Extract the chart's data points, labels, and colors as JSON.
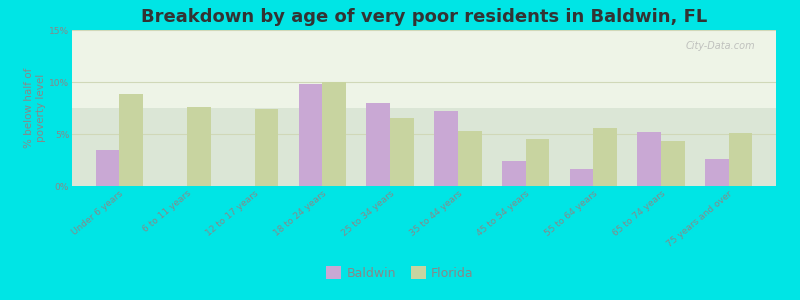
{
  "title": "Breakdown by age of very poor residents in Baldwin, FL",
  "ylabel": "% below half of\npoverty level",
  "categories": [
    "Under 6 years",
    "6 to 11 years",
    "12 to 17 years",
    "18 to 24 years",
    "25 to 34 years",
    "35 to 44 years",
    "45 to 54 years",
    "55 to 64 years",
    "65 to 74 years",
    "75 years and over"
  ],
  "baldwin_values": [
    3.5,
    0.0,
    0.0,
    9.8,
    8.0,
    7.2,
    2.4,
    1.6,
    5.2,
    2.6
  ],
  "florida_values": [
    8.8,
    7.6,
    7.4,
    10.0,
    6.5,
    5.3,
    4.5,
    5.6,
    4.3,
    5.1
  ],
  "baldwin_color": "#c9a8d4",
  "florida_color": "#c8d4a0",
  "background_outer": "#00e5e5",
  "background_plot": "#eef4e6",
  "bar_width": 0.35,
  "ylim": [
    0,
    15
  ],
  "yticks": [
    0,
    5,
    10,
    15
  ],
  "ytick_labels": [
    "0%",
    "5%",
    "10%",
    "15%"
  ],
  "title_fontsize": 13,
  "ylabel_fontsize": 7.5,
  "tick_fontsize": 6.5,
  "legend_fontsize": 9,
  "watermark": "City-Data.com"
}
